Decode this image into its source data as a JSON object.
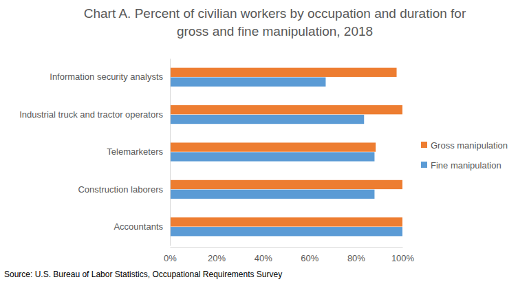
{
  "chart_data": {
    "type": "bar",
    "orientation": "horizontal",
    "title": "Chart A. Percent of civilian workers by occupation and duration for gross and fine manipulation, 2018",
    "source": "Source: U.S. Bureau of Labor Statistics, Occupational Requirements Survey",
    "categories": [
      "Information security analysts",
      "Industrial truck and tractor operators",
      "Telemarketers",
      "Construction laborers",
      "Accountants"
    ],
    "series": [
      {
        "name": "Gross manipulation",
        "color": "#ed7d31",
        "values": [
          97.5,
          100,
          88.5,
          100,
          100
        ]
      },
      {
        "name": "Fine manipulation",
        "color": "#5b9bd5",
        "values": [
          67,
          83.5,
          88,
          88,
          100
        ]
      }
    ],
    "xlim": [
      0,
      100
    ],
    "xticks": [
      {
        "value": 0,
        "label": "0%"
      },
      {
        "value": 20,
        "label": "20%"
      },
      {
        "value": 40,
        "label": "40%"
      },
      {
        "value": 60,
        "label": "60%"
      },
      {
        "value": 80,
        "label": "80%"
      },
      {
        "value": 100,
        "label": "100%"
      }
    ],
    "grid": false,
    "legend": "right"
  }
}
